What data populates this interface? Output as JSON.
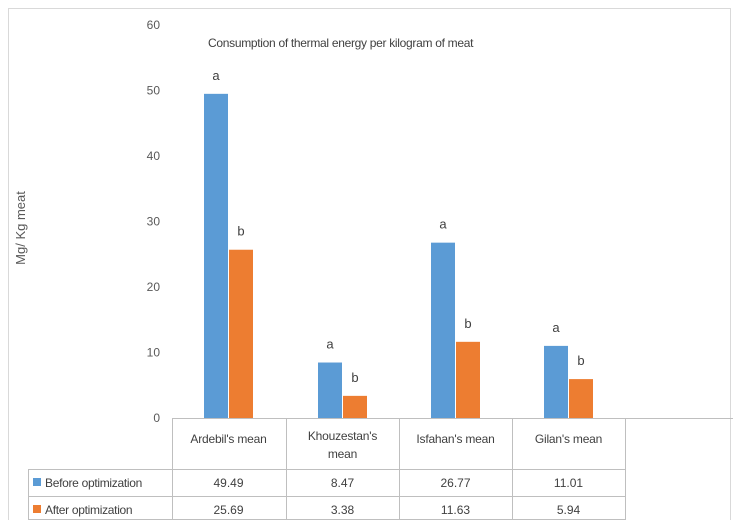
{
  "chart_data": {
    "type": "bar",
    "title": "Consumption of thermal energy per kilogram of meat",
    "ylabel": "Mg/ Kg meat",
    "xlabel": "",
    "ylim": [
      0,
      60
    ],
    "yticks": [
      0,
      10,
      20,
      30,
      40,
      50,
      60
    ],
    "grid": false,
    "legend": "in data table below chart",
    "categories": [
      "Ardebil's mean",
      "Khouzestan's mean",
      "Isfahan's mean",
      "Gilan's mean"
    ],
    "series": [
      {
        "name": "Before optimization",
        "color": "#5b9bd5",
        "values": [
          49.49,
          8.47,
          26.77,
          11.01
        ],
        "value_labels": [
          "49.49",
          "8.47",
          "26.77",
          "11.01"
        ],
        "annotations": [
          "a",
          "a",
          "a",
          "a"
        ]
      },
      {
        "name": "After optimization",
        "color": "#ed7d31",
        "values": [
          25.69,
          3.38,
          11.63,
          5.94
        ],
        "value_labels": [
          "25.69",
          "3.38",
          "11.63",
          "5.94"
        ],
        "annotations": [
          "b",
          "b",
          "b",
          "b"
        ]
      }
    ]
  }
}
